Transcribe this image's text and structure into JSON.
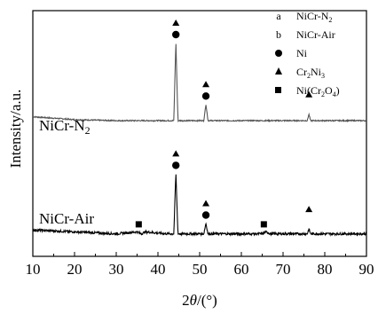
{
  "chart_data": {
    "type": "line",
    "xlabel_prefix": "2",
    "xlabel_theta": "θ",
    "xlabel_suffix": "/(°)",
    "ylabel": "Intensity/a.u.",
    "xlim": [
      10,
      90
    ],
    "xticks": [
      "10",
      "20",
      "30",
      "40",
      "50",
      "60",
      "70",
      "80",
      "90"
    ],
    "series": [
      {
        "name": "NiCr-N",
        "name_sub": "2",
        "color": "#555555",
        "x": [
          10,
          20,
          30,
          38,
          42,
          43.8,
          44.3,
          44.8,
          46,
          50,
          51.0,
          51.5,
          52.0,
          53,
          60,
          70,
          75,
          75.8,
          76.2,
          76.6,
          80,
          90
        ],
        "y": [
          0.62,
          0.605,
          0.6,
          0.6,
          0.6,
          0.6,
          1.0,
          0.6,
          0.6,
          0.6,
          0.6,
          0.685,
          0.6,
          0.6,
          0.6,
          0.6,
          0.6,
          0.6,
          0.633,
          0.6,
          0.6,
          0.6
        ]
      },
      {
        "name": "NiCr-Air",
        "color": "#000000",
        "x": [
          10,
          20,
          30,
          35,
          36,
          37,
          42,
          43.8,
          44.3,
          44.8,
          46,
          50,
          51.0,
          51.5,
          52.0,
          53,
          60,
          65,
          66,
          67,
          70,
          75,
          75.8,
          76.2,
          76.6,
          80,
          90
        ],
        "y": [
          0.04,
          0.03,
          0.02,
          0.03,
          0.02,
          0.03,
          0.02,
          0.02,
          0.33,
          0.02,
          0.02,
          0.02,
          0.02,
          0.075,
          0.02,
          0.02,
          0.02,
          0.02,
          0.03,
          0.02,
          0.02,
          0.02,
          0.02,
          0.045,
          0.02,
          0.02,
          0.02
        ]
      }
    ],
    "markers": [
      {
        "x": 44.3,
        "shape": "triangle",
        "series": 0
      },
      {
        "x": 44.3,
        "shape": "circle",
        "series": 0
      },
      {
        "x": 51.5,
        "shape": "triangle",
        "series": 0
      },
      {
        "x": 51.5,
        "shape": "circle",
        "series": 0
      },
      {
        "x": 76.2,
        "shape": "triangle",
        "series": 0
      },
      {
        "x": 44.3,
        "shape": "triangle",
        "series": 1
      },
      {
        "x": 44.3,
        "shape": "circle",
        "series": 1
      },
      {
        "x": 51.5,
        "shape": "triangle",
        "series": 1
      },
      {
        "x": 51.5,
        "shape": "circle",
        "series": 1
      },
      {
        "x": 76.2,
        "shape": "triangle",
        "series": 1
      },
      {
        "x": 35.5,
        "shape": "square",
        "series": 1
      },
      {
        "x": 65.5,
        "shape": "square",
        "series": 1
      }
    ],
    "legend": [
      {
        "key": "a",
        "text": "NiCr-N",
        "sub": "2",
        "tail": ""
      },
      {
        "key": "b",
        "text": "NiCr-Air",
        "sub": "",
        "tail": ""
      },
      {
        "key": "circle",
        "text": "Ni",
        "sub": "",
        "tail": ""
      },
      {
        "key": "triangle",
        "text": "Cr",
        "sub": "2",
        "tail": "Ni",
        "sub2": "3"
      },
      {
        "key": "square",
        "text": "Ni(Cr",
        "sub": "2",
        "tail": "O",
        "sub2": "4",
        "tail2": ")"
      }
    ],
    "legend_position": "top-right",
    "grid": false
  }
}
